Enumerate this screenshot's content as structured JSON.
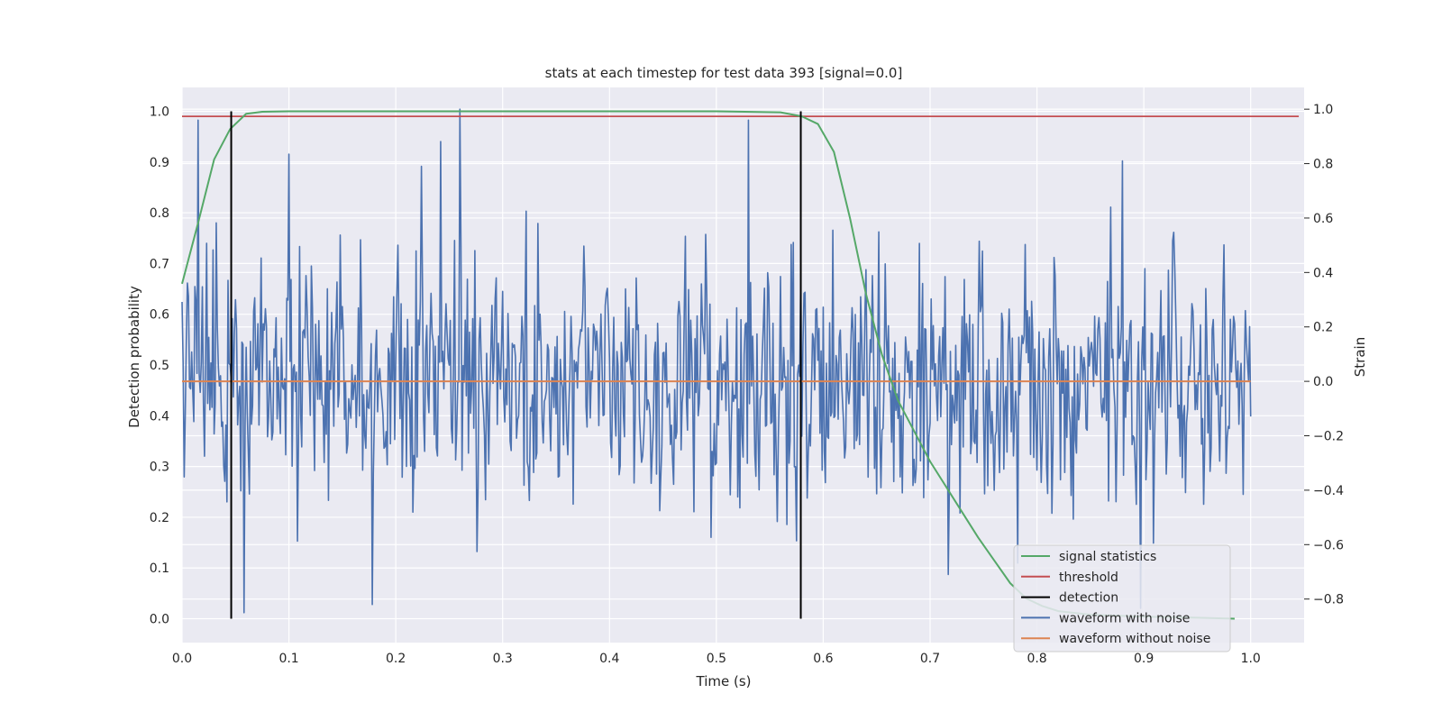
{
  "chart_data": {
    "type": "line",
    "title": "stats at each timestep for test data 393 [signal=0.0]",
    "xlabel": "Time (s)",
    "ylabel_left": "Detection probability",
    "ylabel_right": "Strain",
    "xlim": [
      0.0,
      1.05
    ],
    "ylim_left": [
      -0.047,
      1.047
    ],
    "ylim_right": [
      -0.96,
      1.08
    ],
    "xticks": [
      "0.0",
      "0.1",
      "0.2",
      "0.3",
      "0.4",
      "0.5",
      "0.6",
      "0.7",
      "0.8",
      "0.9",
      "1.0"
    ],
    "yticks_left": [
      "0.0",
      "0.1",
      "0.2",
      "0.3",
      "0.4",
      "0.5",
      "0.6",
      "0.7",
      "0.8",
      "0.9",
      "1.0"
    ],
    "yticks_right": [
      "−0.8",
      "−0.6",
      "−0.4",
      "−0.2",
      "0.0",
      "0.2",
      "0.4",
      "0.6",
      "0.8",
      "1.0"
    ],
    "grid": true,
    "legend_position": "lower-right",
    "colors": {
      "signal_statistics": "#55a868",
      "threshold": "#c44e52",
      "detection": "#000000",
      "waveform_with_noise": "#4c72b0",
      "waveform_without_noise": "#dd8452",
      "plot_background": "#eaeaf2",
      "grid": "#ffffff"
    },
    "legend": [
      "signal statistics",
      "threshold",
      "detection",
      "waveform with noise",
      "waveform without noise"
    ],
    "series": [
      {
        "name": "signal statistics",
        "axis": "left",
        "x": [
          0.0,
          0.015,
          0.03,
          0.045,
          0.06,
          0.075,
          0.1,
          0.2,
          0.3,
          0.4,
          0.5,
          0.56,
          0.58,
          0.595,
          0.61,
          0.625,
          0.64,
          0.655,
          0.67,
          0.685,
          0.7,
          0.715,
          0.73,
          0.745,
          0.76,
          0.775,
          0.79,
          0.805,
          0.82,
          0.85,
          0.9,
          0.95,
          0.985
        ],
        "y": [
          0.66,
          0.78,
          0.905,
          0.965,
          0.995,
          0.999,
          1.0,
          1.0,
          1.0,
          1.0,
          1.0,
          0.998,
          0.99,
          0.975,
          0.92,
          0.79,
          0.64,
          0.52,
          0.43,
          0.37,
          0.31,
          0.26,
          0.21,
          0.16,
          0.115,
          0.07,
          0.04,
          0.025,
          0.015,
          0.008,
          0.004,
          0.002,
          0.0
        ]
      },
      {
        "name": "threshold",
        "axis": "left",
        "x": [
          0.0,
          1.045
        ],
        "y": [
          0.99,
          0.99
        ]
      },
      {
        "name": "detection",
        "axis": "left",
        "segments": [
          {
            "x": 0.046,
            "y": [
              0.0,
              1.0
            ]
          },
          {
            "x": 0.579,
            "y": [
              0.0,
              1.0
            ]
          }
        ]
      },
      {
        "name": "waveform with noise",
        "axis": "right",
        "x_range": [
          0.0,
          1.0
        ],
        "n_points": 1000,
        "approx_std": 0.28,
        "range": [
          -0.88,
          1.0
        ],
        "notable_peaks": [
          {
            "x": 0.015,
            "y": 0.96
          },
          {
            "x": 0.26,
            "y": 1.0
          },
          {
            "x": 0.53,
            "y": 0.96
          },
          {
            "x": 0.88,
            "y": 0.81
          },
          {
            "x": 0.058,
            "y": -0.85
          },
          {
            "x": 0.178,
            "y": -0.82
          }
        ]
      },
      {
        "name": "waveform without noise",
        "axis": "right",
        "x": [
          0.0,
          1.0
        ],
        "y": [
          0.0,
          0.0
        ]
      }
    ]
  }
}
